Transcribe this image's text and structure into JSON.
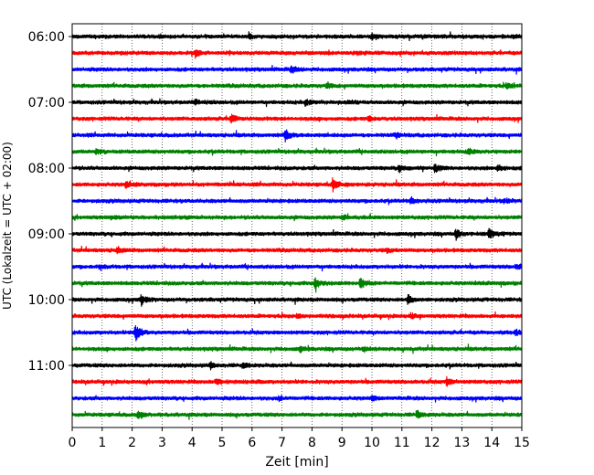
{
  "chart_data": {
    "type": "line",
    "title": "",
    "xlabel": "Zeit  [min]",
    "ylabel": "UTC (Lokalzeit = UTC + 02:00)",
    "xlim": [
      0,
      15
    ],
    "x_ticks": [
      "0",
      "1",
      "2",
      "3",
      "4",
      "5",
      "6",
      "7",
      "8",
      "9",
      "10",
      "11",
      "12",
      "13",
      "14",
      "15"
    ],
    "y_ticks": [
      "06:00",
      "07:00",
      "08:00",
      "09:00",
      "10:00",
      "11:00"
    ],
    "grid": "vertical dotted lines at each minute",
    "trace_interval_min": 15,
    "trace_colors": [
      "#000000",
      "#ff0000",
      "#0000ff",
      "#008000"
    ],
    "series": [
      {
        "start": "06:00",
        "events": [
          [
            5.9,
            0.5
          ],
          [
            10.0,
            0.5
          ],
          [
            14.7,
            0.4
          ]
        ]
      },
      {
        "start": "06:15",
        "events": [
          [
            4.1,
            0.8
          ],
          [
            9.5,
            0.3
          ]
        ]
      },
      {
        "start": "06:30",
        "events": [
          [
            7.3,
            0.8
          ]
        ]
      },
      {
        "start": "06:45",
        "events": [
          [
            8.5,
            0.6
          ],
          [
            14.5,
            0.6
          ]
        ]
      },
      {
        "start": "07:00",
        "events": [
          [
            4.1,
            0.5
          ],
          [
            7.8,
            0.5
          ],
          [
            9.2,
            0.4
          ]
        ]
      },
      {
        "start": "07:15",
        "events": [
          [
            5.3,
            1.0
          ],
          [
            9.9,
            0.4
          ]
        ]
      },
      {
        "start": "07:30",
        "events": [
          [
            7.1,
            1.5
          ],
          [
            10.8,
            0.4
          ]
        ]
      },
      {
        "start": "07:45",
        "events": [
          [
            0.8,
            0.5
          ],
          [
            13.2,
            0.5
          ]
        ]
      },
      {
        "start": "08:00",
        "events": [
          [
            10.9,
            0.9
          ],
          [
            12.1,
            0.9
          ],
          [
            14.2,
            0.7
          ]
        ]
      },
      {
        "start": "08:15",
        "events": [
          [
            1.8,
            0.7
          ],
          [
            8.7,
            1.3
          ]
        ]
      },
      {
        "start": "08:30",
        "events": [
          [
            11.3,
            0.7
          ],
          [
            14.4,
            0.5
          ]
        ]
      },
      {
        "start": "08:45",
        "events": [
          [
            1.3,
            0.3
          ],
          [
            9.0,
            0.3
          ]
        ]
      },
      {
        "start": "09:00",
        "events": [
          [
            12.8,
            1.1
          ],
          [
            13.9,
            1.2
          ]
        ]
      },
      {
        "start": "09:15",
        "events": [
          [
            1.5,
            0.8
          ],
          [
            10.5,
            0.4
          ]
        ]
      },
      {
        "start": "09:30",
        "events": [
          [
            0.9,
            0.3
          ],
          [
            14.8,
            0.4
          ]
        ]
      },
      {
        "start": "09:45",
        "events": [
          [
            8.1,
            1.3
          ],
          [
            9.6,
            1.4
          ]
        ]
      },
      {
        "start": "10:00",
        "events": [
          [
            2.3,
            1.1
          ],
          [
            11.2,
            1.1
          ]
        ]
      },
      {
        "start": "10:15",
        "events": [
          [
            11.3,
            0.5
          ],
          [
            7.5,
            0.3
          ]
        ]
      },
      {
        "start": "10:30",
        "events": [
          [
            2.1,
            2.2
          ],
          [
            14.8,
            0.5
          ]
        ]
      },
      {
        "start": "10:45",
        "events": [
          [
            7.6,
            0.5
          ],
          [
            9.7,
            0.4
          ]
        ]
      },
      {
        "start": "11:00",
        "events": [
          [
            4.6,
            0.6
          ],
          [
            5.7,
            0.7
          ]
        ]
      },
      {
        "start": "11:15",
        "events": [
          [
            4.8,
            0.5
          ],
          [
            12.5,
            0.9
          ]
        ]
      },
      {
        "start": "11:30",
        "events": [
          [
            10.0,
            0.5
          ],
          [
            6.9,
            0.3
          ]
        ]
      },
      {
        "start": "11:45",
        "events": [
          [
            2.2,
            1.0
          ],
          [
            11.5,
            0.7
          ]
        ]
      }
    ]
  }
}
